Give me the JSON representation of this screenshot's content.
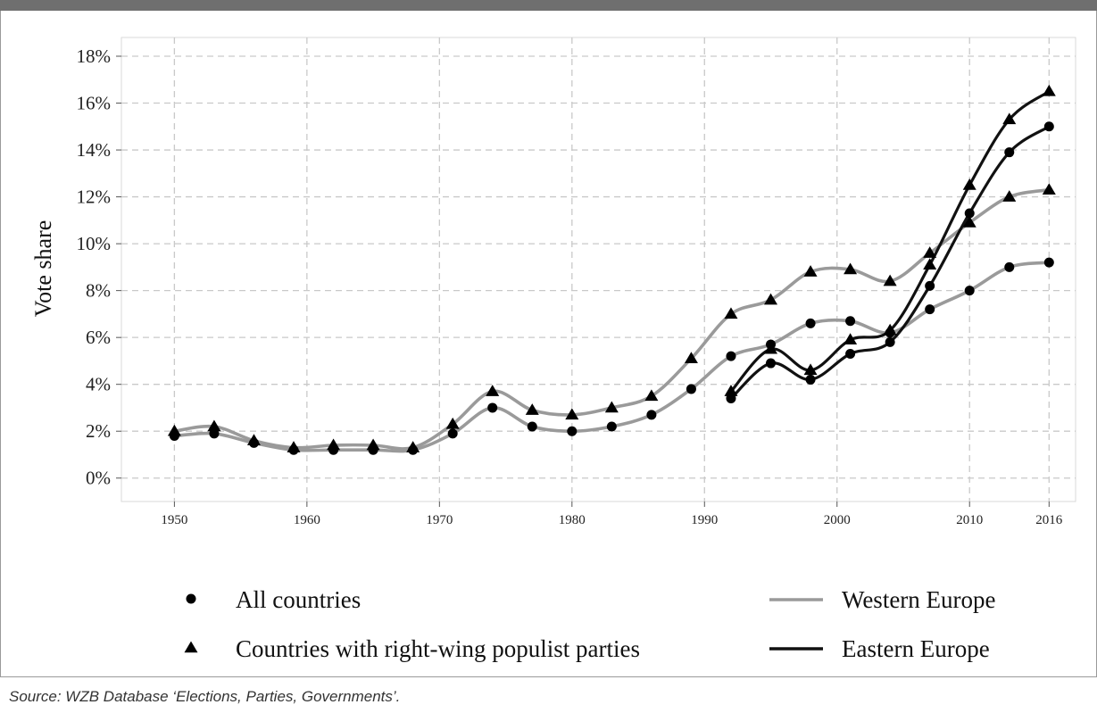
{
  "source_note": "Source: WZB Database ‘Elections, Parties, Governments’.",
  "chart_data": {
    "type": "line",
    "title": "",
    "xlabel": "",
    "ylabel": "Vote share",
    "xlim": [
      1946,
      2018
    ],
    "ylim": [
      -1,
      18.8
    ],
    "x_ticks": [
      1950,
      1960,
      1970,
      1980,
      1990,
      2000,
      2010,
      2016
    ],
    "y_ticks": [
      0,
      2,
      4,
      6,
      8,
      10,
      12,
      14,
      16,
      18
    ],
    "y_tick_labels": [
      "0%",
      "2%",
      "4%",
      "6%",
      "8%",
      "10%",
      "12%",
      "14%",
      "16%",
      "18%"
    ],
    "grid": true,
    "legend": {
      "placement": "bottom",
      "markers": [
        {
          "label": "All countries",
          "marker": "circle"
        },
        {
          "label": "Countries with right-wing populist parties",
          "marker": "triangle"
        }
      ],
      "lines": [
        {
          "label": "Western Europe",
          "color": "#9a9a9a"
        },
        {
          "label": "Eastern Europe",
          "color": "#111111"
        }
      ]
    },
    "series": [
      {
        "region": "Western Europe",
        "subset": "Countries with right-wing populist parties",
        "color": "#9a9a9a",
        "marker": "triangle",
        "x": [
          1950,
          1953,
          1956,
          1959,
          1962,
          1965,
          1968,
          1971,
          1974,
          1977,
          1980,
          1983,
          1986,
          1989,
          1992,
          1995,
          1998,
          2001,
          2004,
          2007,
          2010,
          2013,
          2016
        ],
        "y": [
          2.0,
          2.2,
          1.6,
          1.3,
          1.4,
          1.4,
          1.3,
          2.3,
          3.7,
          2.9,
          2.7,
          3.0,
          3.5,
          5.1,
          7.0,
          7.6,
          8.8,
          8.9,
          8.4,
          9.6,
          10.9,
          12.0,
          12.3
        ]
      },
      {
        "region": "Western Europe",
        "subset": "All countries",
        "color": "#9a9a9a",
        "marker": "circle",
        "x": [
          1950,
          1953,
          1956,
          1959,
          1962,
          1965,
          1968,
          1971,
          1974,
          1977,
          1980,
          1983,
          1986,
          1989,
          1992,
          1995,
          1998,
          2001,
          2004,
          2007,
          2010,
          2013,
          2016
        ],
        "y": [
          1.8,
          1.9,
          1.5,
          1.2,
          1.2,
          1.2,
          1.2,
          1.9,
          3.0,
          2.2,
          2.0,
          2.2,
          2.7,
          3.8,
          5.2,
          5.7,
          6.6,
          6.7,
          6.2,
          7.2,
          8.0,
          9.0,
          9.2
        ]
      },
      {
        "region": "Eastern Europe",
        "subset": "Countries with right-wing populist parties",
        "color": "#111111",
        "marker": "triangle",
        "x": [
          1992,
          1995,
          1998,
          2001,
          2004,
          2007,
          2010,
          2013,
          2016
        ],
        "y": [
          3.7,
          5.5,
          4.6,
          5.9,
          6.3,
          9.1,
          12.5,
          15.3,
          16.5
        ]
      },
      {
        "region": "Eastern Europe",
        "subset": "All countries",
        "color": "#111111",
        "marker": "circle",
        "x": [
          1992,
          1995,
          1998,
          2001,
          2004,
          2007,
          2010,
          2013,
          2016
        ],
        "y": [
          3.4,
          4.9,
          4.2,
          5.3,
          5.8,
          8.2,
          11.3,
          13.9,
          15.0
        ]
      }
    ]
  }
}
